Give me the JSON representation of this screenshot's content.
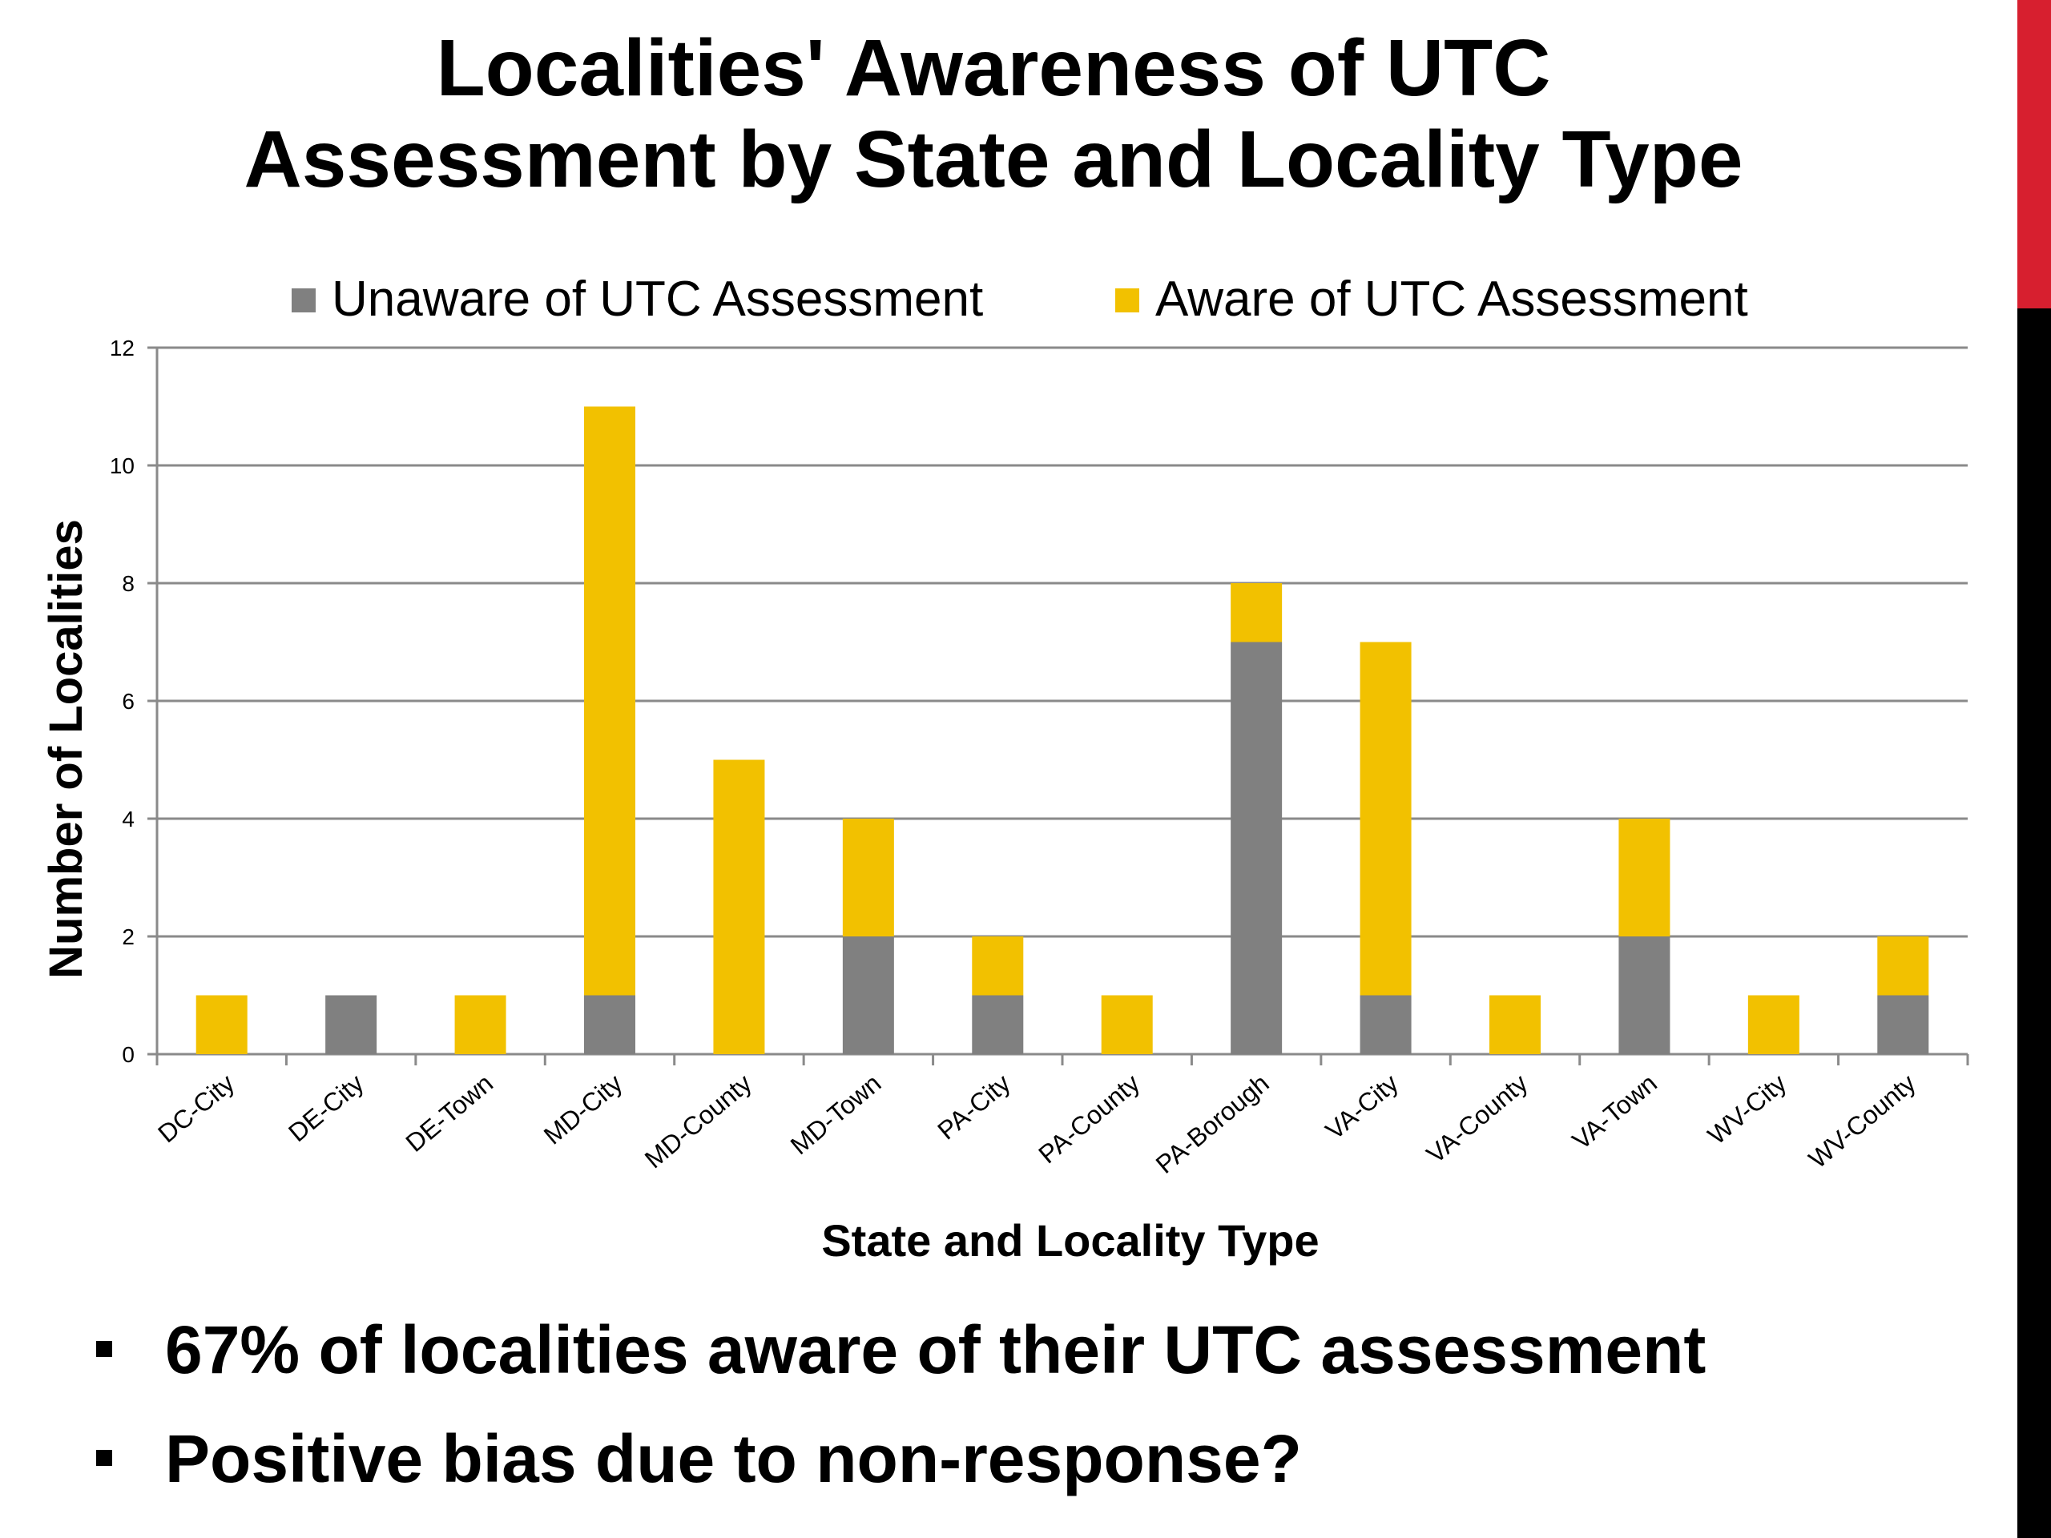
{
  "slide": {
    "title_line1": "Localities' Awareness of UTC",
    "title_line2": "Assessment by State and Locality Type",
    "bullets": [
      "67% of localities aware of their UTC assessment",
      "Positive bias due to non-response?"
    ],
    "accent_colors": {
      "red": "#d71f2f",
      "black": "#000000"
    }
  },
  "chart_data": {
    "type": "bar",
    "stacked": true,
    "xlabel": "State and Locality Type",
    "ylabel": "Number of Localities",
    "ylim": [
      0,
      12
    ],
    "yticks": [
      0,
      2,
      4,
      6,
      8,
      10,
      12
    ],
    "grid": true,
    "legend_position": "top",
    "categories": [
      "DC-City",
      "DE-City",
      "DE-Town",
      "MD-City",
      "MD-County",
      "MD-Town",
      "PA-City",
      "PA-County",
      "PA-Borough",
      "VA-City",
      "VA-County",
      "VA-Town",
      "WV-City",
      "WV-County"
    ],
    "series": [
      {
        "name": "Unaware of UTC Assessment",
        "color": "#808080",
        "values": [
          0,
          1,
          0,
          1,
          0,
          2,
          1,
          0,
          7,
          1,
          0,
          2,
          0,
          1
        ]
      },
      {
        "name": "Aware of UTC Assessment",
        "color": "#f2c100",
        "values": [
          1,
          0,
          1,
          10,
          5,
          2,
          1,
          1,
          1,
          6,
          1,
          2,
          1,
          1
        ]
      }
    ]
  }
}
